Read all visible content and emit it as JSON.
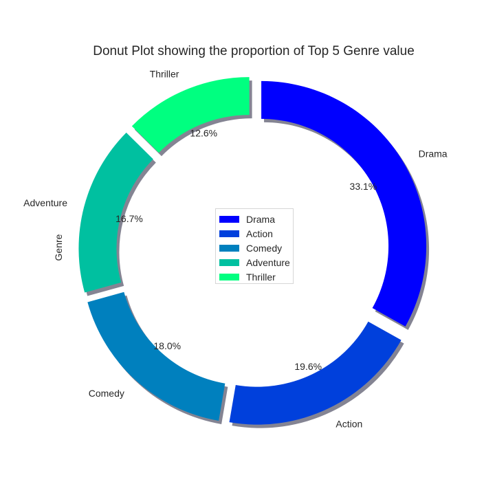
{
  "chart_data": {
    "type": "pie",
    "subtype": "donut",
    "title": "Donut Plot showing the proportion of Top 5 Genre value",
    "ylabel": "Genre",
    "legend_position": "center",
    "slices": [
      {
        "label": "Drama",
        "value": 33.1,
        "pct_label": "33.1%",
        "color": "#0000ff"
      },
      {
        "label": "Action",
        "value": 19.6,
        "pct_label": "19.6%",
        "color": "#0040dc"
      },
      {
        "label": "Comedy",
        "value": 18.0,
        "pct_label": "18.0%",
        "color": "#0080be"
      },
      {
        "label": "Adventure",
        "value": 16.7,
        "pct_label": "16.7%",
        "color": "#00c0a0"
      },
      {
        "label": "Thriller",
        "value": 12.6,
        "pct_label": "12.6%",
        "color": "#00ff80"
      }
    ],
    "shadow": true,
    "exploded": true
  }
}
